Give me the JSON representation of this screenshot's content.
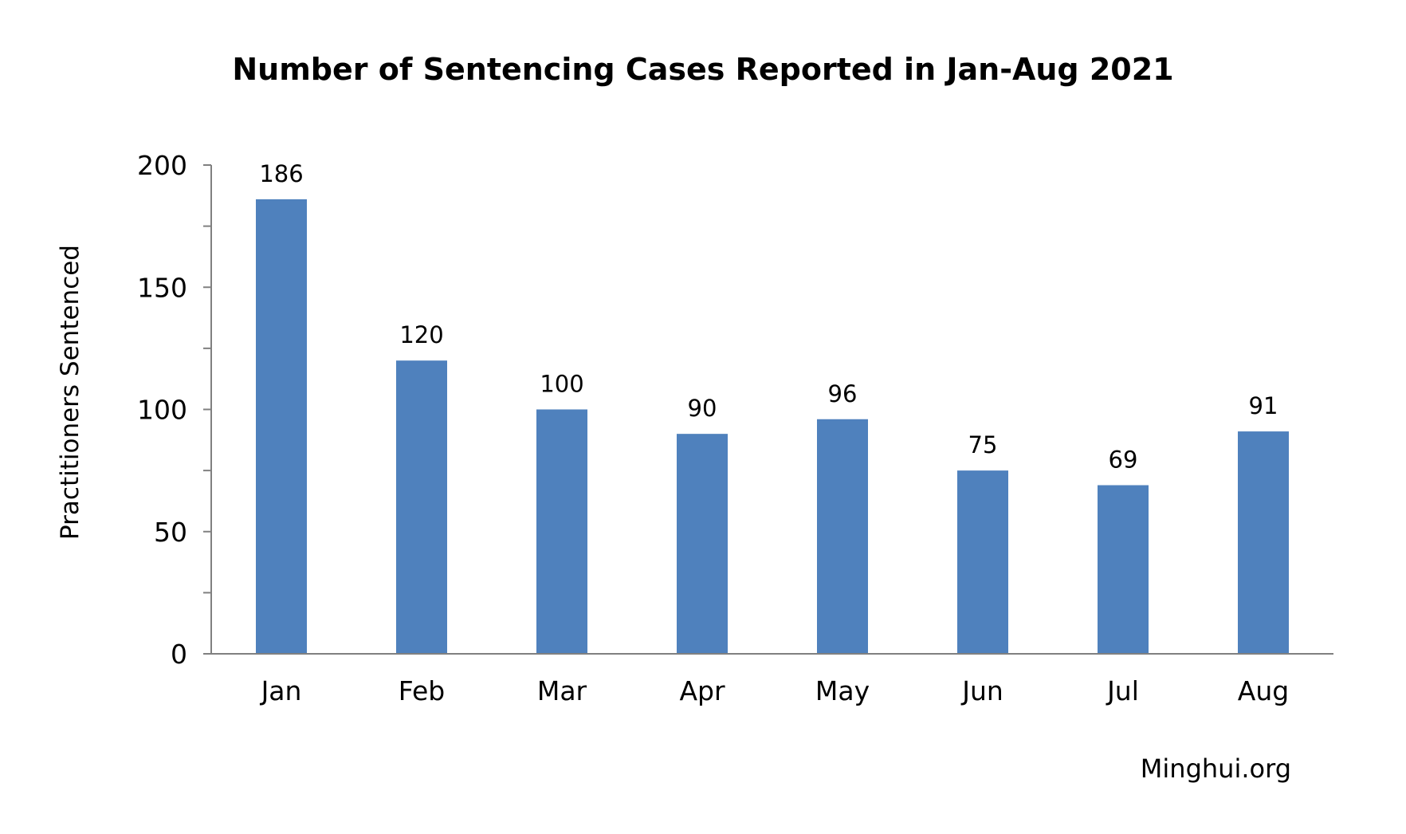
{
  "chart_data": {
    "type": "bar",
    "title": "Number of Sentencing Cases Reported in Jan-Aug 2021",
    "xlabel": "",
    "ylabel": "Practitioners Sentenced",
    "categories": [
      "Jan",
      "Feb",
      "Mar",
      "Apr",
      "May",
      "Jun",
      "Jul",
      "Aug"
    ],
    "values": [
      186,
      120,
      100,
      90,
      96,
      75,
      69,
      91
    ],
    "ylim": [
      0,
      200
    ],
    "yticks": [
      0,
      50,
      100,
      150,
      200
    ],
    "ytick_labels": [
      "0",
      "50",
      "100",
      "150",
      "200"
    ],
    "data_labels": [
      "186",
      "120",
      "100",
      "90",
      "96",
      "75",
      "69",
      "91"
    ],
    "bar_color": "#4f81bd",
    "axis_color": "#808080",
    "grid": false,
    "legend": "none",
    "source": "Minghui.org"
  }
}
